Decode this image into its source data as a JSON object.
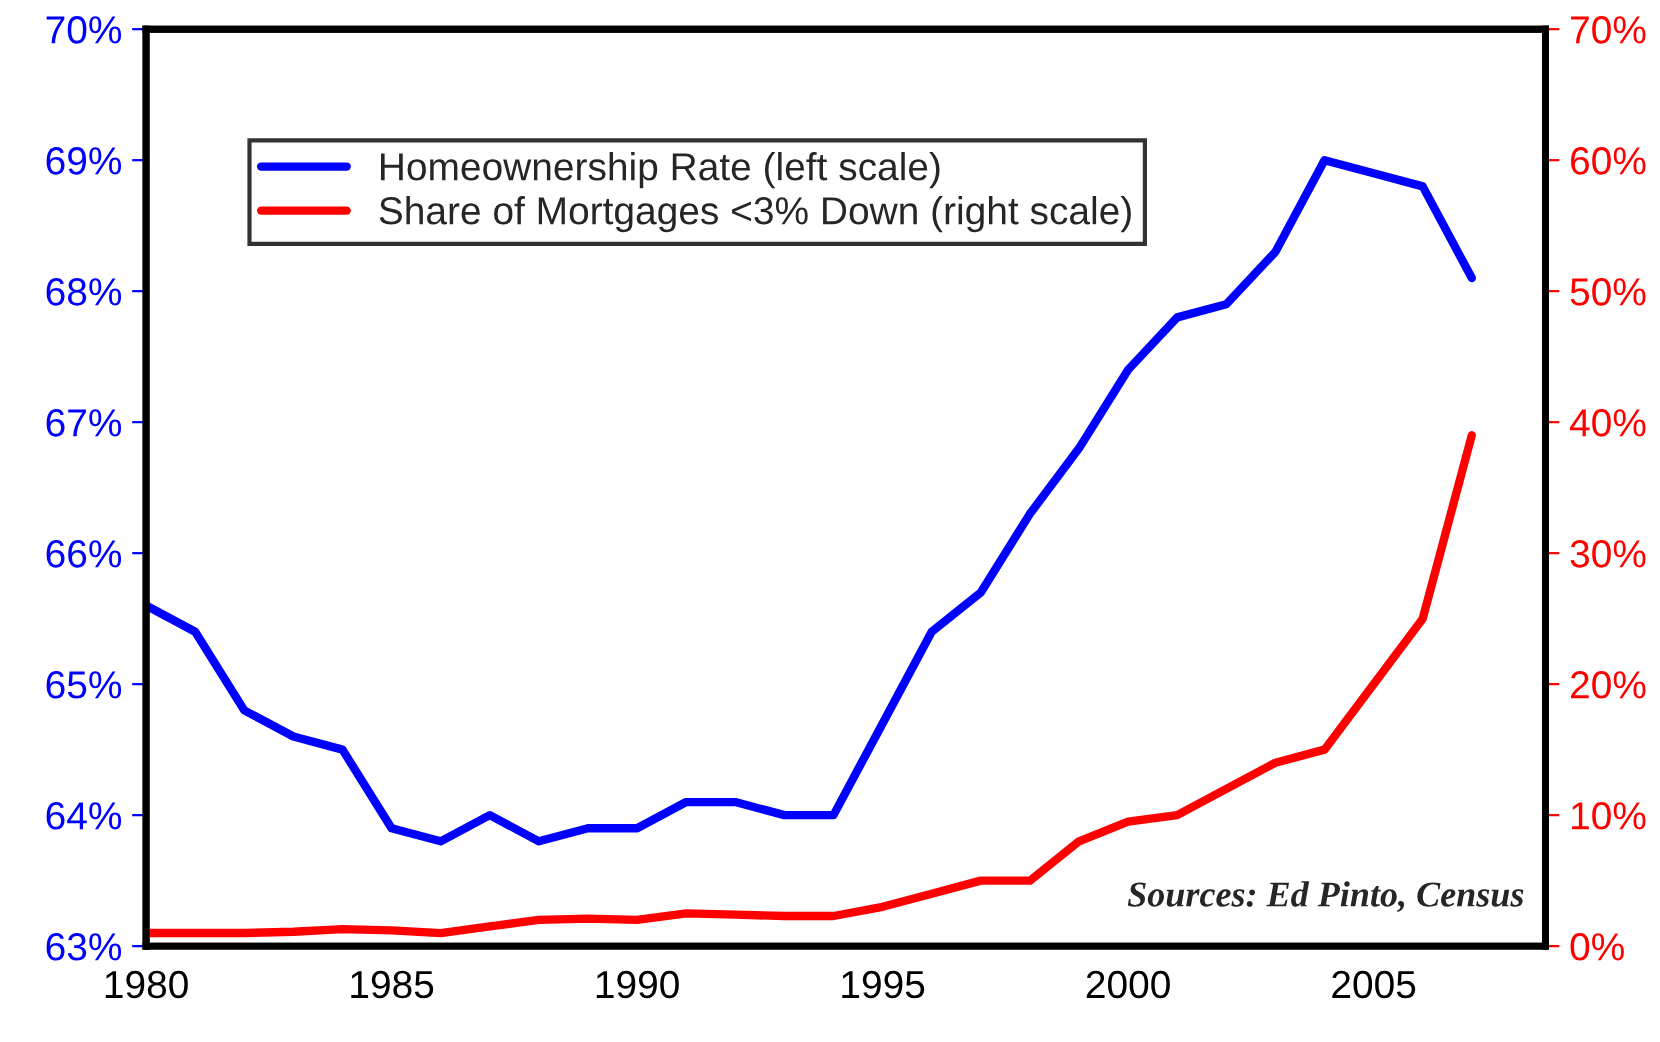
{
  "chart_data": {
    "type": "line",
    "x": [
      1980,
      1981,
      1982,
      1983,
      1984,
      1985,
      1986,
      1987,
      1988,
      1989,
      1990,
      1991,
      1992,
      1993,
      1994,
      1995,
      1996,
      1997,
      1998,
      1999,
      2000,
      2001,
      2002,
      2003,
      2004,
      2005,
      2006,
      2007
    ],
    "series": [
      {
        "name": "Homeownership Rate (left scale)",
        "color": "#0000ff",
        "values": [
          65.6,
          65.4,
          64.8,
          64.6,
          64.5,
          63.9,
          63.8,
          64.0,
          63.8,
          63.9,
          63.9,
          64.1,
          64.1,
          64.0,
          64.0,
          64.7,
          65.4,
          65.7,
          66.3,
          66.8,
          67.4,
          67.8,
          67.9,
          68.3,
          69.0,
          68.9,
          68.8,
          68.1
        ]
      },
      {
        "name": "Share of Mortgages <3% Down (right scale)",
        "color": "#ff0000",
        "axis": "y2",
        "values": [
          1,
          1,
          1,
          1.1,
          1.3,
          1.2,
          1,
          1.5,
          2,
          2.1,
          2,
          2.5,
          2.4,
          2.3,
          2.3,
          3,
          4,
          5,
          5,
          8,
          9.5,
          10,
          12,
          14,
          15,
          20,
          25,
          39
        ]
      }
    ],
    "xlim": [
      1980,
      2008.5
    ],
    "xticks": [
      1980,
      1985,
      1990,
      1995,
      2000,
      2005
    ],
    "ylim": [
      63,
      70
    ],
    "yticks": [
      {
        "value": 63,
        "label": "63%"
      },
      {
        "value": 64,
        "label": "64%"
      },
      {
        "value": 65,
        "label": "65%"
      },
      {
        "value": 66,
        "label": "66%"
      },
      {
        "value": 67,
        "label": "67%"
      },
      {
        "value": 68,
        "label": "68%"
      },
      {
        "value": 69,
        "label": "69%"
      },
      {
        "value": 70,
        "label": "70%"
      }
    ],
    "y2lim": [
      0,
      70
    ],
    "y2ticks": [
      {
        "value": 0,
        "label": "0%"
      },
      {
        "value": 10,
        "label": "10%"
      },
      {
        "value": 20,
        "label": "20%"
      },
      {
        "value": 30,
        "label": "30%"
      },
      {
        "value": 40,
        "label": "40%"
      },
      {
        "value": 50,
        "label": "50%"
      },
      {
        "value": 60,
        "label": "60%"
      },
      {
        "value": 70,
        "label": "70%"
      }
    ],
    "annotations": [
      "Sources: Ed Pinto, Census"
    ],
    "legend": "top left",
    "grid": false,
    "line_style": "solid",
    "marker": "none"
  }
}
